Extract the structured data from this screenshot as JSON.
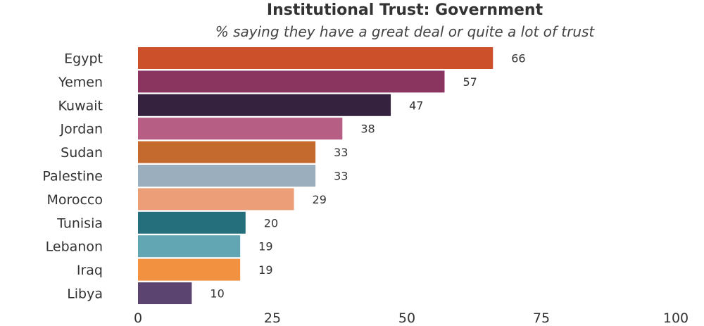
{
  "chart_data": {
    "type": "bar",
    "orientation": "horizontal",
    "title": "Institutional Trust: Government",
    "subtitle": "% saying they have a great deal or quite a lot of trust",
    "categories": [
      "Egypt",
      "Yemen",
      "Kuwait",
      "Jordan",
      "Sudan",
      "Palestine",
      "Morocco",
      "Tunisia",
      "Lebanon",
      "Iraq",
      "Libya"
    ],
    "values": [
      66,
      57,
      47,
      38,
      33,
      33,
      29,
      20,
      19,
      19,
      10
    ],
    "colors": [
      "#cc5029",
      "#8a3460",
      "#34223f",
      "#b65e84",
      "#c56a2e",
      "#9aaebd",
      "#ec9e78",
      "#256f7d",
      "#62a6b3",
      "#f2913f",
      "#5c4470"
    ],
    "xlim": [
      0,
      100
    ],
    "xticks": [
      0,
      25,
      50,
      75,
      100
    ],
    "xtick_labels": [
      "0",
      "25",
      "50",
      "75",
      "100"
    ],
    "grid": false,
    "legend": "none"
  }
}
